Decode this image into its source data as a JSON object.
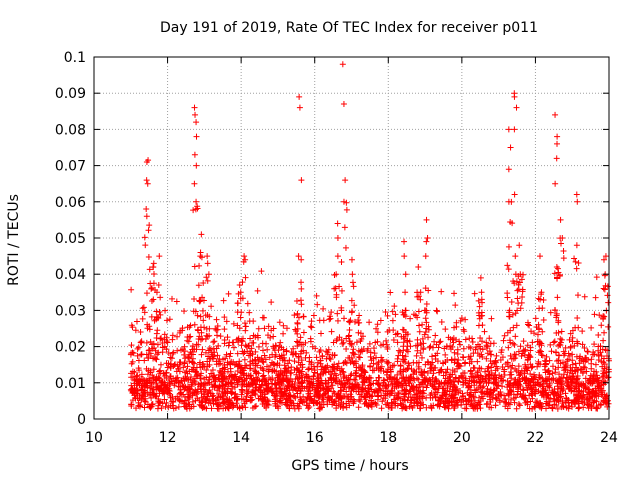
{
  "chart_data": {
    "type": "scatter",
    "title": "Day 191 of 2019, Rate Of TEC Index for receiver p011",
    "xlabel": "GPS time / hours",
    "ylabel": "ROTI / TECUs",
    "xlim": [
      10,
      24
    ],
    "ylim": [
      0,
      0.1
    ],
    "xticks": [
      "10",
      "12",
      "14",
      "16",
      "18",
      "20",
      "22",
      "24"
    ],
    "yticks": [
      "0",
      "0.01",
      "0.02",
      "0.03",
      "0.04",
      "0.05",
      "0.06",
      "0.07",
      "0.08",
      "0.09",
      "0.1"
    ],
    "grid": true,
    "marker": "+",
    "color": "#ff0000",
    "data_range_x": [
      11.0,
      24.0
    ],
    "baseline_roti": 0.008,
    "series": [
      {
        "name": "ROTI",
        "clusters": [
          {
            "x": 11.45,
            "values": [
              0.056,
              0.058,
              0.065,
              0.066,
              0.071,
              0.0715
            ]
          },
          {
            "x": 11.6,
            "values": [
              0.042,
              0.043
            ]
          },
          {
            "x": 11.75,
            "values": [
              0.045,
              0.037,
              0.035
            ]
          },
          {
            "x": 12.75,
            "values": [
              0.06,
              0.065,
              0.07,
              0.073,
              0.078,
              0.082,
              0.084,
              0.086
            ]
          },
          {
            "x": 12.9,
            "values": [
              0.051,
              0.045,
              0.046
            ]
          },
          {
            "x": 13.1,
            "values": [
              0.04,
              0.043,
              0.045
            ]
          },
          {
            "x": 13.95,
            "values": [
              0.035,
              0.037
            ]
          },
          {
            "x": 14.1,
            "values": [
              0.045,
              0.044
            ]
          },
          {
            "x": 15.6,
            "values": [
              0.044,
              0.045,
              0.066,
              0.086,
              0.089
            ]
          },
          {
            "x": 16.6,
            "values": [
              0.04,
              0.045,
              0.05,
              0.054
            ]
          },
          {
            "x": 16.8,
            "values": [
              0.06,
              0.066,
              0.087,
              0.098
            ]
          },
          {
            "x": 17.0,
            "values": [
              0.04,
              0.044
            ]
          },
          {
            "x": 18.45,
            "values": [
              0.03,
              0.035,
              0.04,
              0.045,
              0.049
            ]
          },
          {
            "x": 18.85,
            "values": [
              0.035,
              0.042
            ]
          },
          {
            "x": 19.05,
            "values": [
              0.045,
              0.049,
              0.05,
              0.055
            ]
          },
          {
            "x": 20.5,
            "values": [
              0.035,
              0.039
            ]
          },
          {
            "x": 21.3,
            "values": [
              0.06,
              0.069,
              0.075,
              0.08
            ]
          },
          {
            "x": 21.45,
            "values": [
              0.04,
              0.045,
              0.062,
              0.08,
              0.086,
              0.089,
              0.09
            ]
          },
          {
            "x": 21.6,
            "values": [
              0.04,
              0.048
            ]
          },
          {
            "x": 22.15,
            "values": [
              0.035,
              0.045
            ]
          },
          {
            "x": 22.55,
            "values": [
              0.042,
              0.065,
              0.072,
              0.076,
              0.078,
              0.084
            ]
          },
          {
            "x": 22.7,
            "values": [
              0.055,
              0.05
            ]
          },
          {
            "x": 23.1,
            "values": [
              0.048,
              0.06,
              0.062
            ]
          },
          {
            "x": 23.9,
            "values": [
              0.04,
              0.044,
              0.045
            ]
          }
        ]
      }
    ]
  }
}
